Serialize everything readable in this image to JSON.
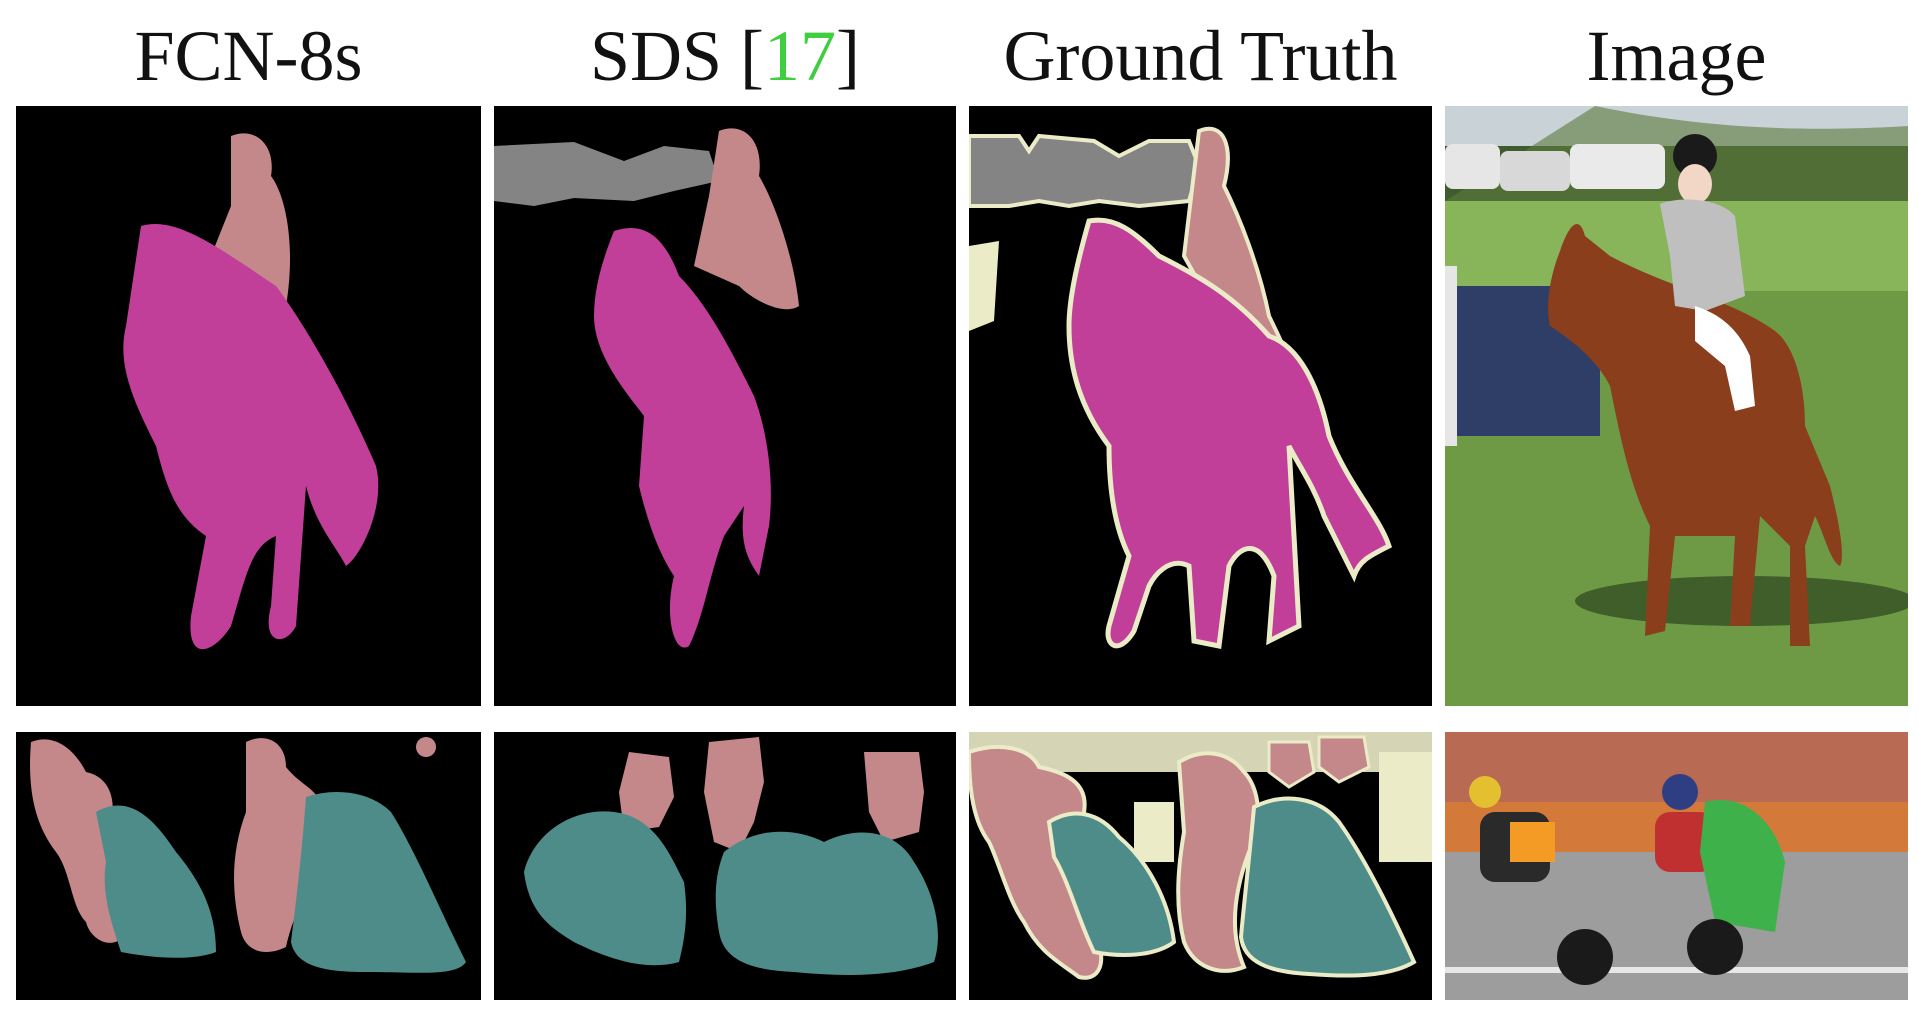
{
  "figure": {
    "columns": [
      {
        "id": "fcn",
        "label": "FCN-8s"
      },
      {
        "id": "sds",
        "label_prefix": "SDS [",
        "citation": "17",
        "label_suffix": "]"
      },
      {
        "id": "gt",
        "label": "Ground Truth"
      },
      {
        "id": "image",
        "label": "Image"
      }
    ],
    "colors": {
      "background": "#000000",
      "person": "#c4878a",
      "horse": "#c13e99",
      "motorbike": "#4e8c8a",
      "car": "#848484",
      "void_boundary": "#ecebc8",
      "citation": "#3fce3f"
    }
  }
}
